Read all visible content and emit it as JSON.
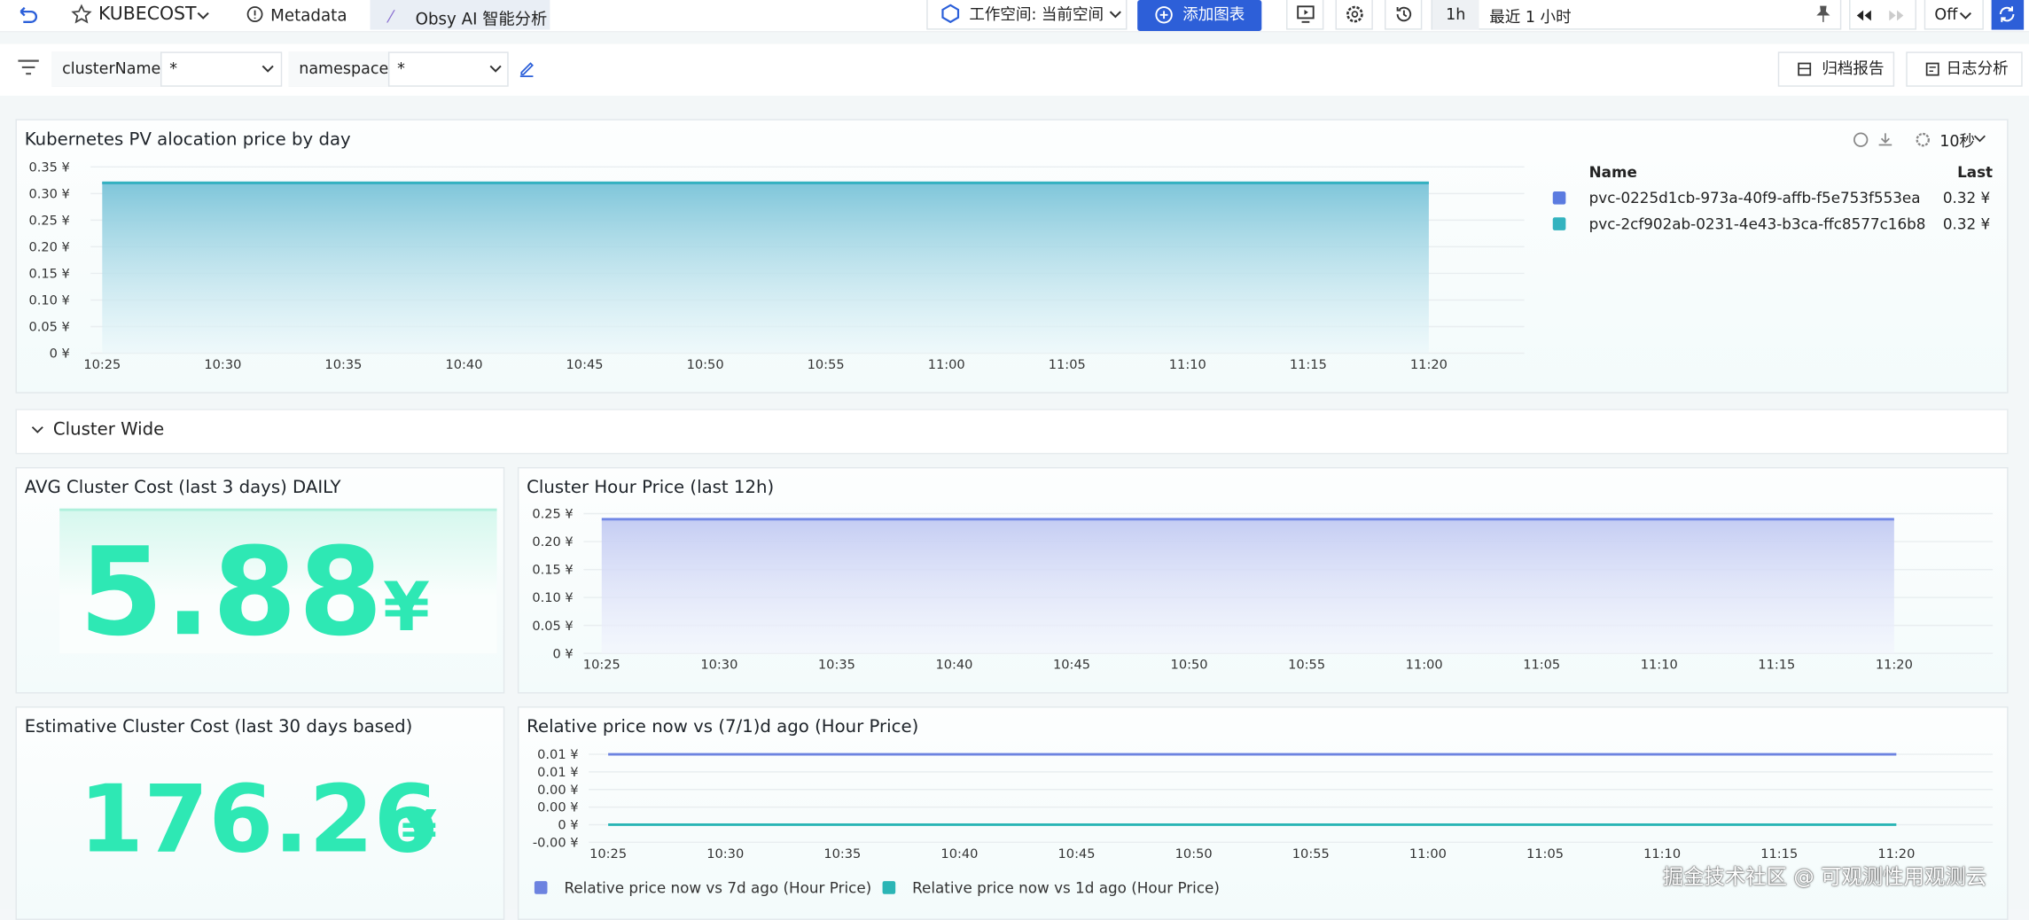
{
  "toolbar": {
    "app": "KUBECOST",
    "tabs": [
      "Metadata",
      "Obsy AI 智能分析"
    ],
    "workspace": "工作空间: 当前空间",
    "add_chart": "添加图表",
    "range_short": "1h",
    "range": "最近 1 小时",
    "refresh": "Off"
  },
  "filters": [
    {
      "label": "clusterName",
      "value": "*"
    },
    {
      "label": "namespace",
      "value": "*"
    }
  ],
  "actions": [
    "归档报告",
    "日志分析"
  ],
  "section": "Cluster Wide",
  "interval": "10秒",
  "stats": [
    {
      "title": "AVG Cluster Cost (last 3 days) DAILY",
      "value": 5.88,
      "unit": "¥"
    },
    {
      "title": "Estimative Cluster Cost (last 30 days based)",
      "value": 176.26,
      "unit": "¥"
    }
  ],
  "chart_data": [
    {
      "type": "line",
      "title": "Kubernetes PV alocation price by day",
      "fill": true,
      "grid": true,
      "legend": "right",
      "legend_columns": [
        "Name",
        "Last"
      ],
      "x": [
        "10:25",
        "10:30",
        "10:35",
        "10:40",
        "10:45",
        "10:50",
        "10:55",
        "11:00",
        "11:05",
        "11:10",
        "11:15",
        "11:20"
      ],
      "ylim": [
        0,
        0.35
      ],
      "yticks": [
        {
          "value": 0,
          "label": "0 ¥"
        },
        {
          "value": 0.05,
          "label": "0.05 ¥"
        },
        {
          "value": 0.1,
          "label": "0.10 ¥"
        },
        {
          "value": 0.15,
          "label": "0.15 ¥"
        },
        {
          "value": 0.2,
          "label": "0.20 ¥"
        },
        {
          "value": 0.25,
          "label": "0.25 ¥"
        },
        {
          "value": 0.3,
          "label": "0.30 ¥"
        },
        {
          "value": 0.35,
          "label": "0.35 ¥"
        }
      ],
      "series": [
        {
          "name": "pvc-0225d1cb-973a-40f9-affb-f5e753f553ea",
          "color": "#5b7be0",
          "values": [
            0.32,
            0.32,
            0.32,
            0.32,
            0.32,
            0.32,
            0.32,
            0.32,
            0.32,
            0.32,
            0.32,
            0.32
          ],
          "last": {
            "value": 0.32,
            "label": "0.32 ¥"
          }
        },
        {
          "name": "pvc-2cf902ab-0231-4e43-b3ca-ffc8577c16b8",
          "color": "#33b3bf",
          "values": [
            0.32,
            0.32,
            0.32,
            0.32,
            0.32,
            0.32,
            0.32,
            0.32,
            0.32,
            0.32,
            0.32,
            0.32
          ],
          "last": {
            "value": 0.32,
            "label": "0.32 ¥"
          }
        }
      ]
    },
    {
      "type": "line",
      "title": "Cluster Hour Price (last 12h)",
      "fill": true,
      "grid": true,
      "x": [
        "10:25",
        "10:30",
        "10:35",
        "10:40",
        "10:45",
        "10:50",
        "10:55",
        "11:00",
        "11:05",
        "11:10",
        "11:15",
        "11:20"
      ],
      "ylim": [
        0,
        0.25
      ],
      "yticks": [
        {
          "value": 0,
          "label": "0 ¥"
        },
        {
          "value": 0.05,
          "label": "0.05 ¥"
        },
        {
          "value": 0.1,
          "label": "0.10 ¥"
        },
        {
          "value": 0.15,
          "label": "0.15 ¥"
        },
        {
          "value": 0.2,
          "label": "0.20 ¥"
        },
        {
          "value": 0.25,
          "label": "0.25 ¥"
        }
      ],
      "series": [
        {
          "color": "#7288e6",
          "values": [
            0.24,
            0.24,
            0.24,
            0.24,
            0.24,
            0.24,
            0.24,
            0.24,
            0.24,
            0.24,
            0.24,
            0.24
          ]
        }
      ]
    },
    {
      "type": "line",
      "title": "Relative price now vs (7/1)d ago (Hour Price)",
      "fill": false,
      "grid": true,
      "legend": "bottom",
      "x": [
        "10:25",
        "10:30",
        "10:35",
        "10:40",
        "10:45",
        "10:50",
        "10:55",
        "11:00",
        "11:05",
        "11:10",
        "11:15",
        "11:20"
      ],
      "ylim": [
        -0.0024,
        0.0096
      ],
      "yticks": [
        {
          "value": -0.0024,
          "label": "-0.00 ¥"
        },
        {
          "value": 0,
          "label": "0 ¥"
        },
        {
          "value": 0.0024,
          "label": "0.00 ¥"
        },
        {
          "value": 0.0048,
          "label": "0.00 ¥"
        },
        {
          "value": 0.0072,
          "label": "0.01 ¥"
        },
        {
          "value": 0.0096,
          "label": "0.01 ¥"
        }
      ],
      "series": [
        {
          "name": "Relative price now vs 7d ago (Hour Price)",
          "color": "#6d83e0",
          "values": [
            0.0096,
            0.0096,
            0.0096,
            0.0096,
            0.0096,
            0.0096,
            0.0096,
            0.0096,
            0.0096,
            0.0096,
            0.0096,
            0.0096
          ]
        },
        {
          "name": "Relative price now vs 1d ago (Hour Price)",
          "color": "#2bb5b5",
          "values": [
            0,
            0,
            0,
            0,
            0,
            0,
            0,
            0,
            0,
            0,
            0,
            0
          ]
        }
      ]
    }
  ],
  "watermark": "掘金技术社区 @ 可观测性用观测云"
}
